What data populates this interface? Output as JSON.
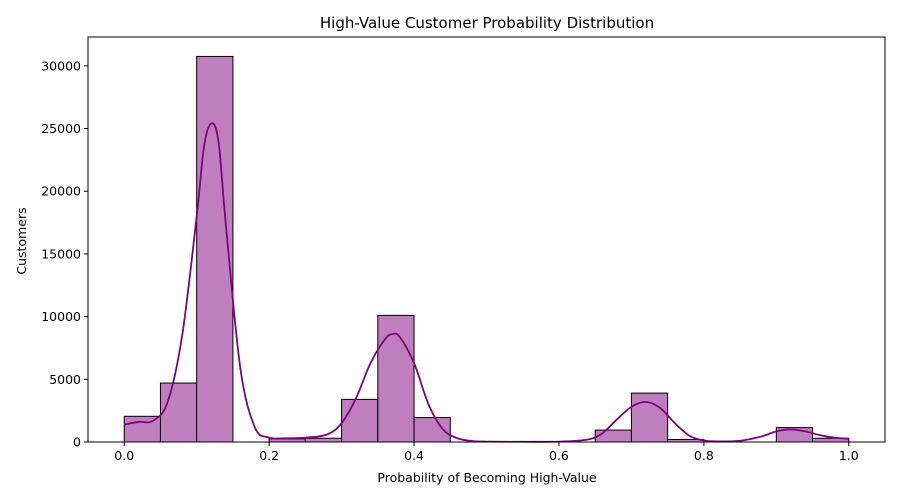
{
  "chart_data": {
    "type": "histogram",
    "title": "High-Value Customer Probability Distribution",
    "xlabel": "Probability of Becoming High-Value",
    "ylabel": "Customers",
    "xlim": [
      -0.05,
      1.05
    ],
    "ylim": [
      0,
      32300
    ],
    "x_ticks": [
      0.0,
      0.2,
      0.4,
      0.6,
      0.8,
      1.0
    ],
    "x_tick_labels": [
      "0.0",
      "0.2",
      "0.4",
      "0.6",
      "0.8",
      "1.0"
    ],
    "y_ticks": [
      0,
      5000,
      10000,
      15000,
      20000,
      25000,
      30000
    ],
    "y_tick_labels": [
      "0",
      "5000",
      "10000",
      "15000",
      "20000",
      "25000",
      "30000"
    ],
    "bin_width": 0.05,
    "bins": [
      {
        "start": 0.0,
        "count": 2050
      },
      {
        "start": 0.05,
        "count": 4700
      },
      {
        "start": 0.1,
        "count": 30750
      },
      {
        "start": 0.15,
        "count": 0
      },
      {
        "start": 0.2,
        "count": 250
      },
      {
        "start": 0.25,
        "count": 300
      },
      {
        "start": 0.3,
        "count": 3400
      },
      {
        "start": 0.35,
        "count": 10100
      },
      {
        "start": 0.4,
        "count": 1950
      },
      {
        "start": 0.45,
        "count": 0
      },
      {
        "start": 0.5,
        "count": 0
      },
      {
        "start": 0.55,
        "count": 0
      },
      {
        "start": 0.6,
        "count": 0
      },
      {
        "start": 0.65,
        "count": 950
      },
      {
        "start": 0.7,
        "count": 3900
      },
      {
        "start": 0.75,
        "count": 200
      },
      {
        "start": 0.8,
        "count": 0
      },
      {
        "start": 0.85,
        "count": 0
      },
      {
        "start": 0.9,
        "count": 1150
      },
      {
        "start": 0.95,
        "count": 300
      }
    ],
    "kde": {
      "x": [
        0.0,
        0.02,
        0.04,
        0.06,
        0.08,
        0.1,
        0.11,
        0.12,
        0.13,
        0.14,
        0.16,
        0.18,
        0.2,
        0.22,
        0.25,
        0.28,
        0.3,
        0.32,
        0.34,
        0.36,
        0.37,
        0.38,
        0.4,
        0.42,
        0.44,
        0.46,
        0.48,
        0.5,
        0.55,
        0.6,
        0.64,
        0.66,
        0.68,
        0.7,
        0.72,
        0.74,
        0.76,
        0.78,
        0.8,
        0.82,
        0.85,
        0.88,
        0.9,
        0.92,
        0.94,
        0.96,
        0.98,
        1.0
      ],
      "y": [
        1400,
        1600,
        1700,
        3200,
        8500,
        18000,
        23500,
        25400,
        24000,
        17500,
        6000,
        1200,
        350,
        300,
        350,
        600,
        1500,
        3500,
        6300,
        8200,
        8600,
        8400,
        6300,
        3000,
        1000,
        300,
        80,
        30,
        20,
        30,
        200,
        700,
        1800,
        2800,
        3200,
        2700,
        1500,
        500,
        120,
        50,
        100,
        450,
        850,
        1000,
        850,
        550,
        350,
        250
      ],
      "color": "#800080"
    },
    "bar_fill": "#bf7fbf",
    "bar_edge": "#000000"
  }
}
